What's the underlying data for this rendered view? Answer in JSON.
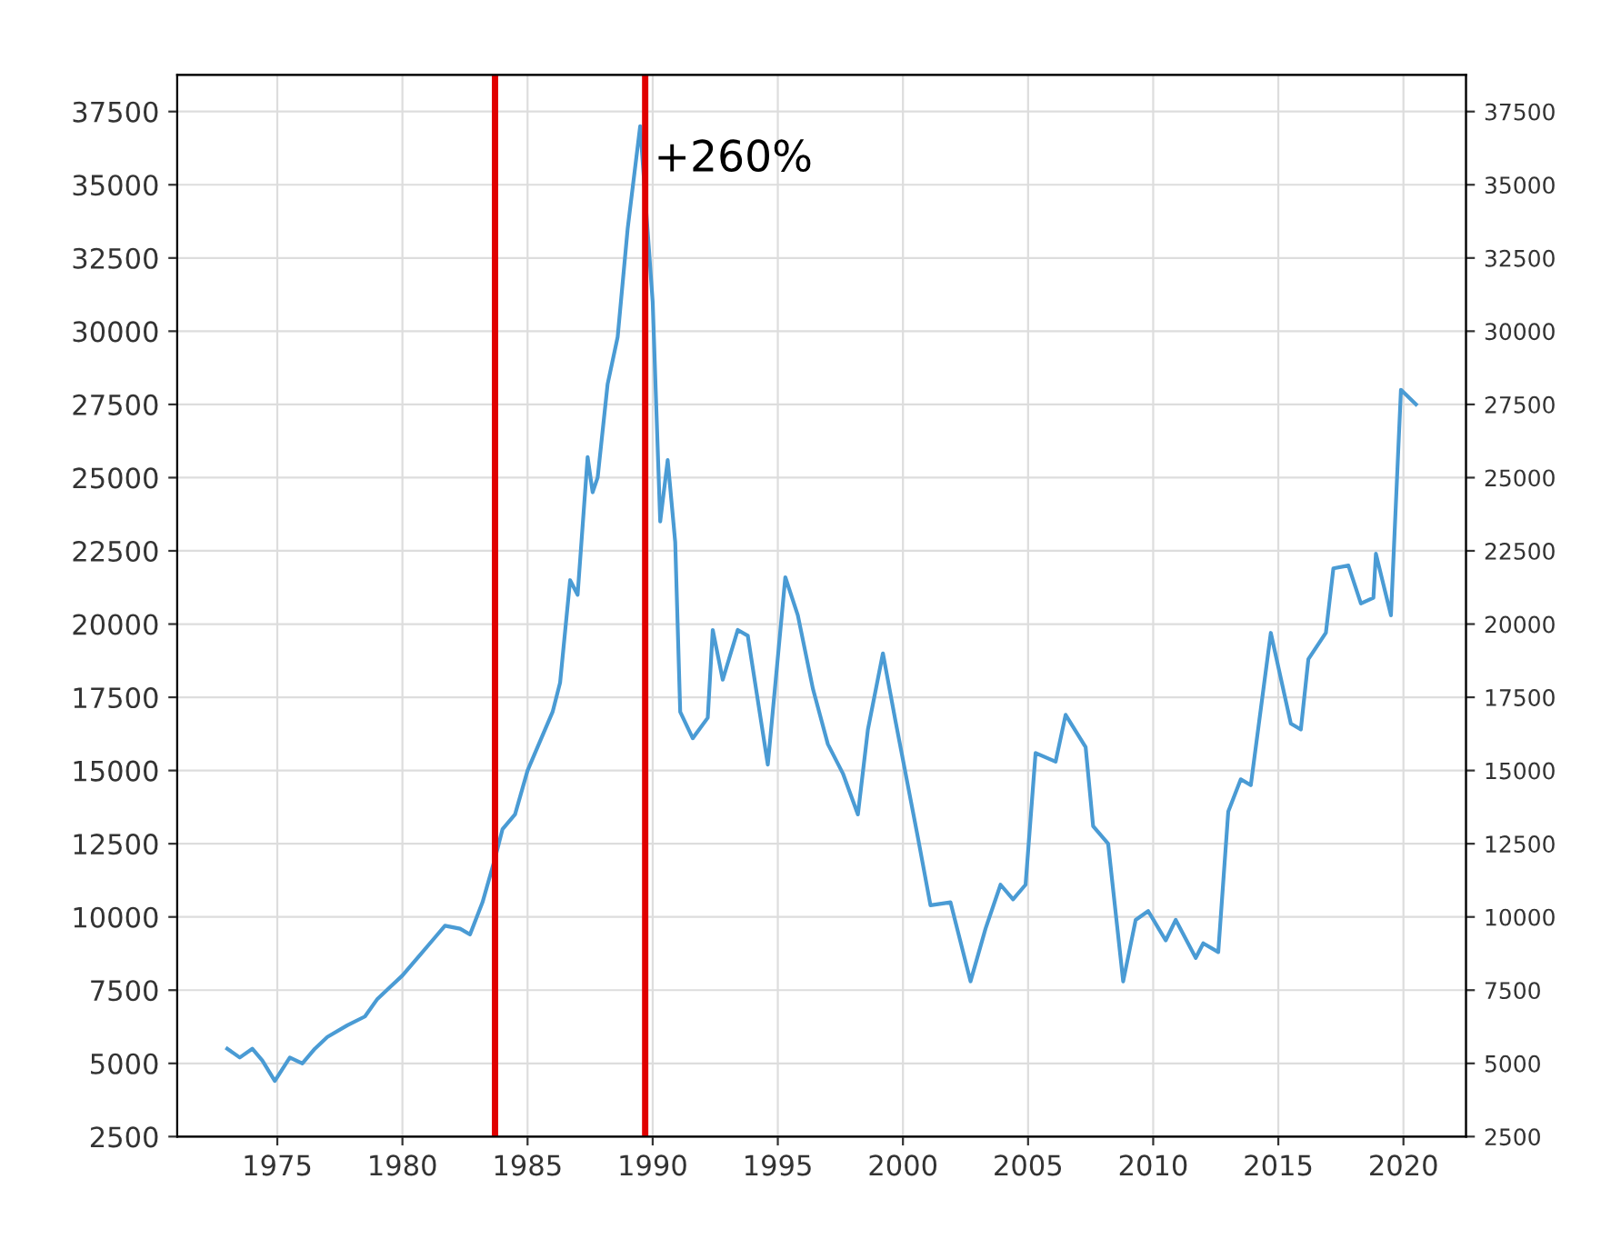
{
  "chart_data": {
    "type": "line",
    "annotations": [
      "+260%"
    ],
    "series": [
      {
        "color": "#4a9bd4",
        "x": [
          1973.0,
          1973.5,
          1974.0,
          1974.4,
          1974.9,
          1975.5,
          1976.0,
          1976.5,
          1977.0,
          1977.8,
          1978.5,
          1979.0,
          1979.5,
          1980.0,
          1980.7,
          1981.3,
          1981.7,
          1982.3,
          1982.7,
          1983.2,
          1983.7,
          1984.0,
          1984.5,
          1985.0,
          1985.5,
          1986.0,
          1986.3,
          1986.7,
          1987.0,
          1987.4,
          1987.6,
          1987.8,
          1988.2,
          1988.6,
          1989.0,
          1989.5,
          1990.0,
          1990.3,
          1990.6,
          1990.9,
          1991.1,
          1991.6,
          1992.2,
          1992.4,
          1992.8,
          1993.4,
          1993.8,
          1994.6,
          1995.3,
          1995.8,
          1996.4,
          1997.0,
          1997.6,
          1998.2,
          1998.6,
          1999.2,
          1999.7,
          2000.6,
          2001.1,
          2001.9,
          2002.7,
          2003.3,
          2003.9,
          2004.4,
          2004.9,
          2005.3,
          2006.1,
          2006.5,
          2007.3,
          2007.6,
          2008.2,
          2008.8,
          2009.3,
          2009.8,
          2010.5,
          2010.9,
          2011.7,
          2012.0,
          2012.6,
          2013.0,
          2013.5,
          2013.9,
          2014.7,
          2015.5,
          2015.9,
          2016.2,
          2016.9,
          2017.2,
          2017.8,
          2018.3,
          2018.8,
          2018.9,
          2019.5,
          2019.9,
          2020.5
        ],
        "values": [
          5500,
          5200,
          5500,
          5100,
          4400,
          5200,
          5000,
          5500,
          5900,
          6300,
          6600,
          7200,
          7600,
          8000,
          8700,
          9300,
          9700,
          9600,
          9400,
          10500,
          12000,
          13000,
          13500,
          15000,
          16000,
          17000,
          18000,
          21500,
          21000,
          25700,
          24500,
          25000,
          28200,
          29800,
          33500,
          37000,
          31000,
          23500,
          25600,
          22800,
          17000,
          16100,
          16800,
          19800,
          18100,
          19800,
          19600,
          15200,
          21600,
          20300,
          17800,
          15900,
          14900,
          13500,
          16400,
          19000,
          16700,
          12700,
          10400,
          10500,
          7800,
          9600,
          11100,
          10600,
          11100,
          15600,
          15300,
          16900,
          15800,
          13100,
          12500,
          7800,
          9900,
          10200,
          9200,
          9900,
          8600,
          9100,
          8800,
          13600,
          14700,
          14500,
          19700,
          16600,
          16400,
          18800,
          19700,
          21900,
          22000,
          20700,
          20900,
          22400,
          20300,
          28000,
          27500
        ]
      }
    ],
    "xlim": [
      1971,
      2022.5
    ],
    "xticks": [
      1975,
      1980,
      1985,
      1990,
      1995,
      2000,
      2005,
      2010,
      2015,
      2020
    ],
    "ylim": [
      2500,
      38750
    ],
    "yticks": [
      2500,
      5000,
      7500,
      10000,
      12500,
      15000,
      17500,
      20000,
      22500,
      25000,
      27500,
      30000,
      32500,
      35000,
      37500
    ],
    "y2lim": [
      2500,
      38750
    ],
    "y2ticks": [
      2500,
      5000,
      7500,
      10000,
      12500,
      15000,
      17500,
      20000,
      22500,
      25000,
      27500,
      30000,
      32500,
      35000,
      37500
    ],
    "ref_lines": [
      {
        "axis": "x",
        "value": 1983.7,
        "color": "#e00000"
      },
      {
        "axis": "x",
        "value": 1989.7,
        "color": "#e00000"
      }
    ],
    "grid": true
  }
}
